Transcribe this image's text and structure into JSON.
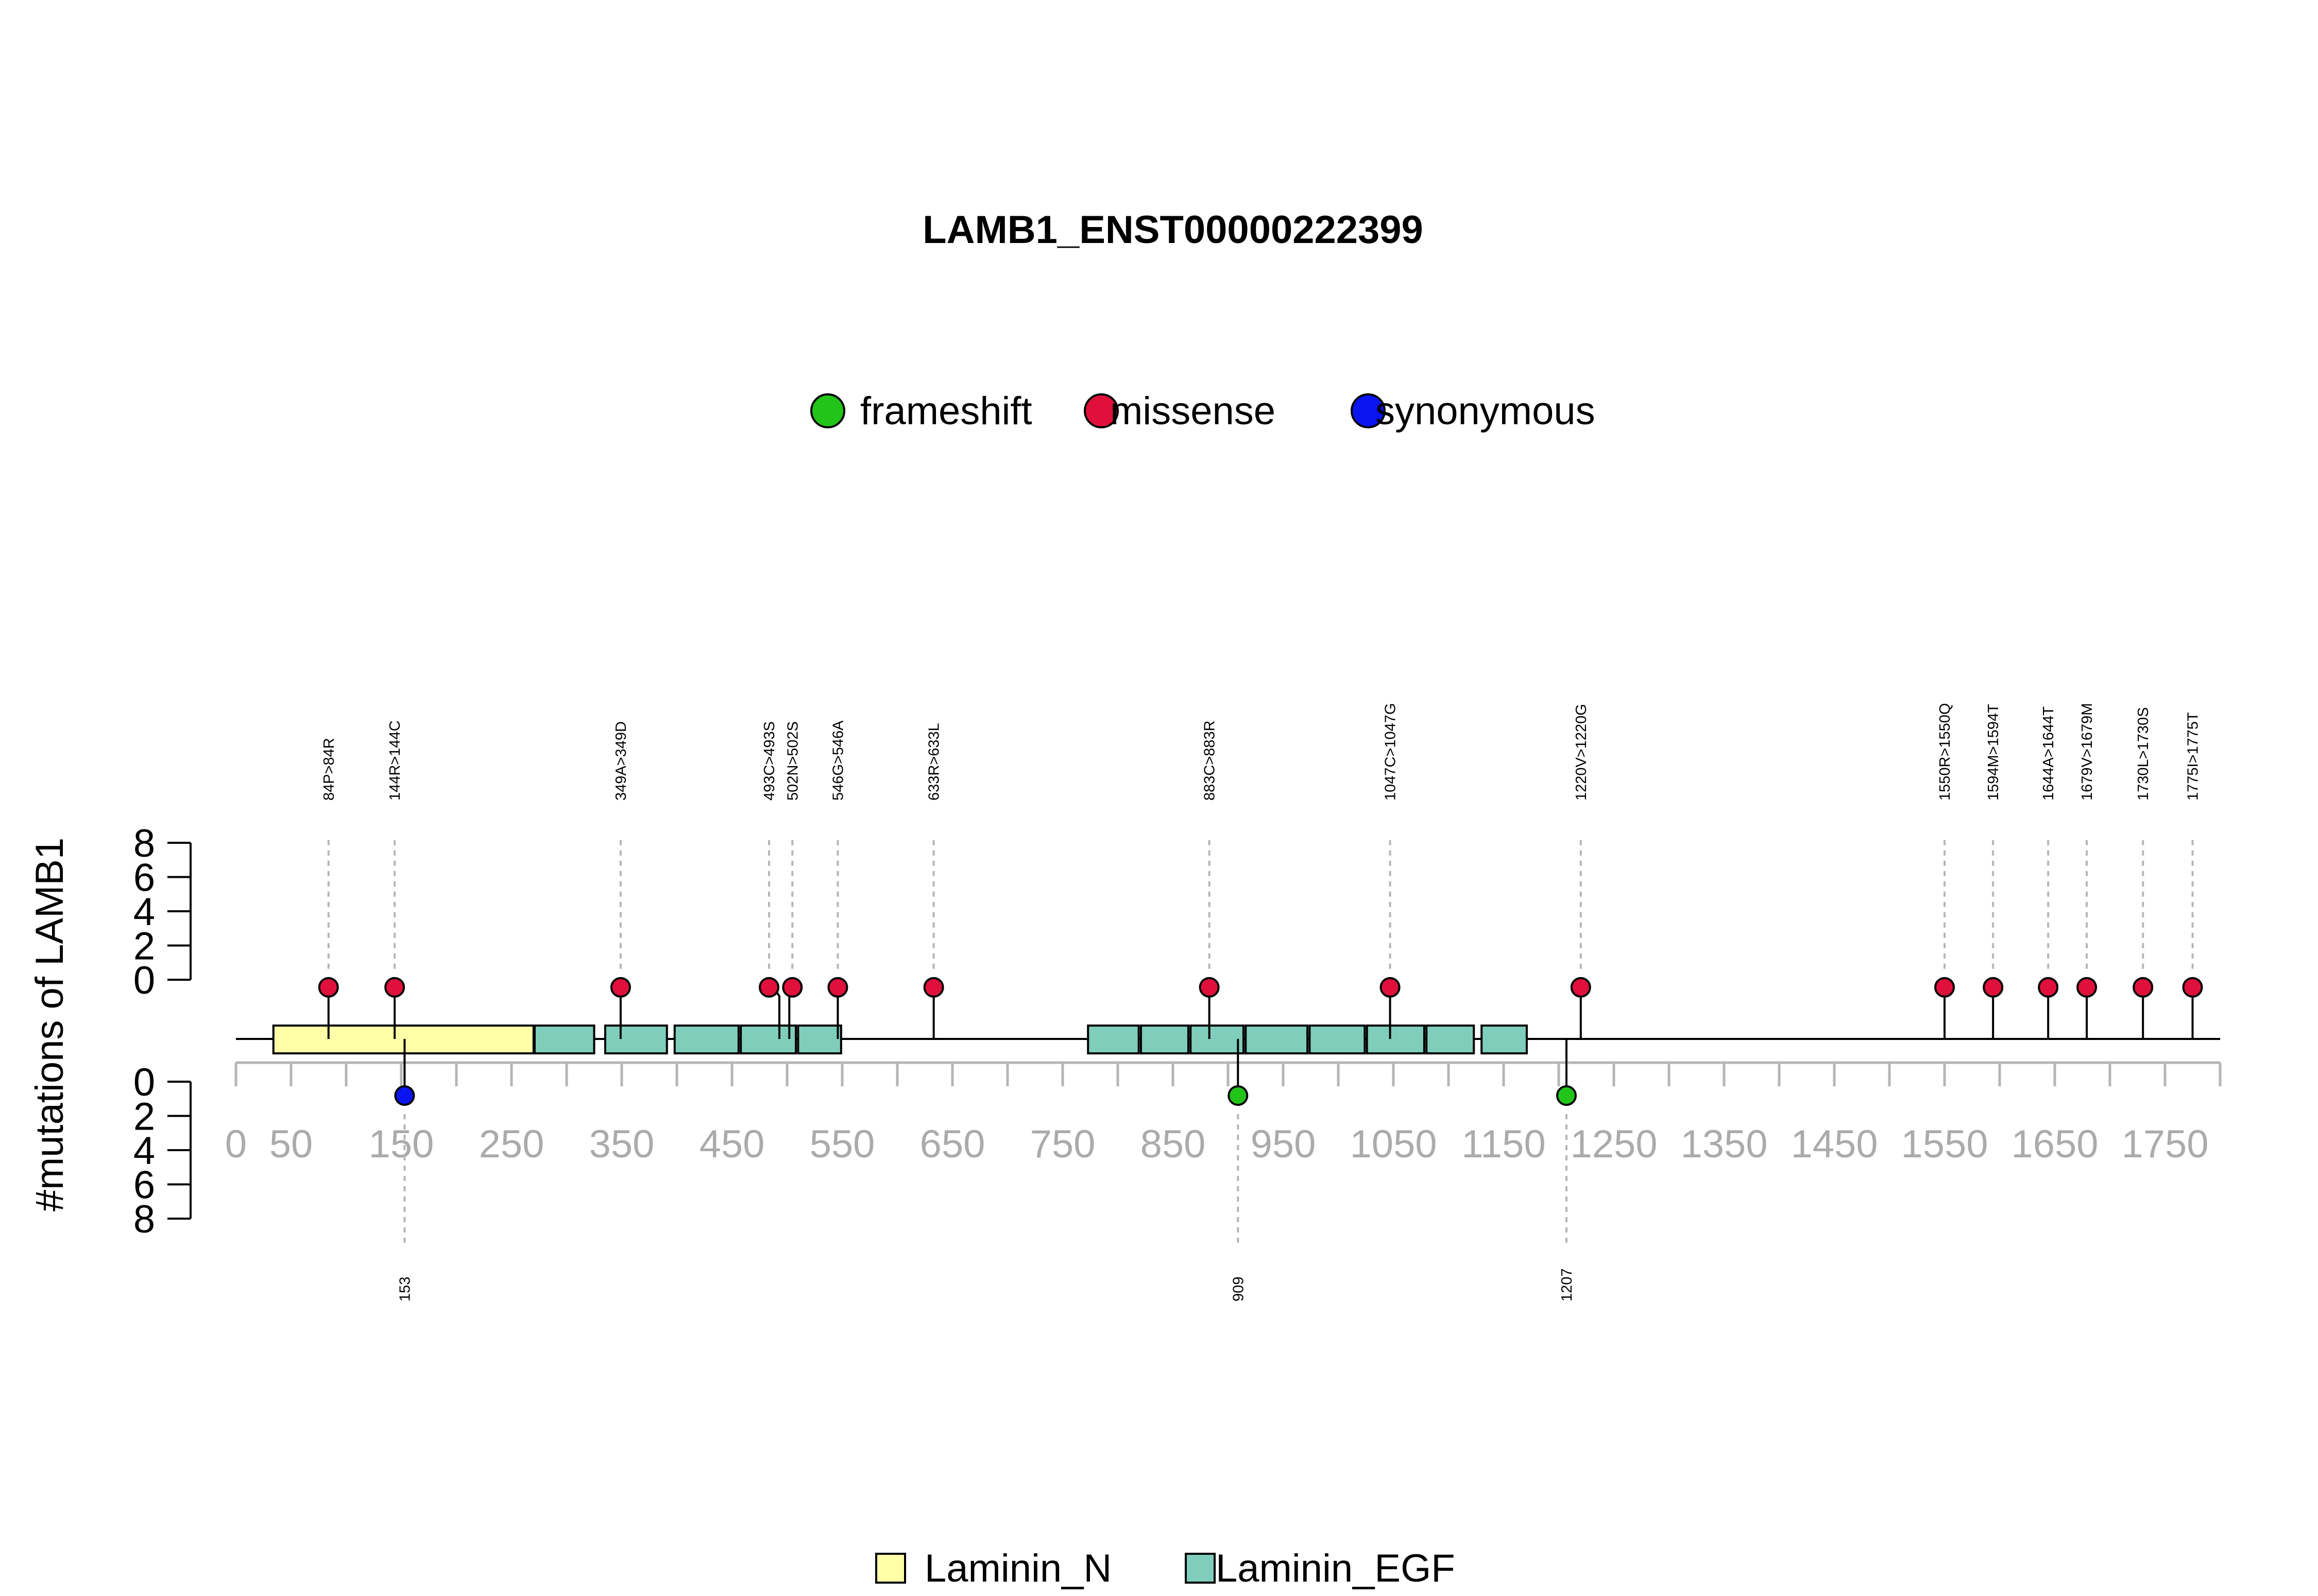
{
  "chart_data": {
    "type": "lollipop",
    "title": "LAMB1_ENST00000222399",
    "ylabel": "#mutations of LAMB1",
    "xlim": [
      0,
      1800
    ],
    "x_ticks": [
      0,
      50,
      150,
      250,
      350,
      450,
      550,
      650,
      750,
      850,
      950,
      1050,
      1150,
      1250,
      1350,
      1450,
      1550,
      1650,
      1750
    ],
    "y_ticks": [
      0,
      2,
      4,
      6,
      8
    ],
    "ylim": [
      0,
      8
    ],
    "grid": false,
    "legend_position": "top-center",
    "mutation_types": [
      {
        "name": "frameshift",
        "color": "#22C41A"
      },
      {
        "name": "missense",
        "color": "#E0103C"
      },
      {
        "name": "synonymous",
        "color": "#0A14F0"
      }
    ],
    "upper_mutations": [
      {
        "pos": 84,
        "label": "84P>84R",
        "count": 1,
        "type": "missense"
      },
      {
        "pos": 144,
        "label": "144R>144C",
        "count": 1,
        "type": "missense"
      },
      {
        "pos": 349,
        "label": "349A>349D",
        "count": 1,
        "type": "missense"
      },
      {
        "pos": 493,
        "label": "493C>493S",
        "count": 1,
        "type": "missense"
      },
      {
        "pos": 502,
        "label": "502N>502S",
        "count": 1,
        "type": "missense"
      },
      {
        "pos": 546,
        "label": "546G>546A",
        "count": 1,
        "type": "missense"
      },
      {
        "pos": 633,
        "label": "633R>633L",
        "count": 1,
        "type": "missense"
      },
      {
        "pos": 883,
        "label": "883C>883R",
        "count": 1,
        "type": "missense"
      },
      {
        "pos": 1047,
        "label": "1047C>1047G",
        "count": 1,
        "type": "missense"
      },
      {
        "pos": 1220,
        "label": "1220V>1220G",
        "count": 1,
        "type": "missense"
      },
      {
        "pos": 1550,
        "label": "1550R>1550Q",
        "count": 1,
        "type": "missense"
      },
      {
        "pos": 1594,
        "label": "1594M>1594T",
        "count": 1,
        "type": "missense"
      },
      {
        "pos": 1644,
        "label": "1644A>1644T",
        "count": 1,
        "type": "missense"
      },
      {
        "pos": 1679,
        "label": "1679V>1679M",
        "count": 1,
        "type": "missense"
      },
      {
        "pos": 1730,
        "label": "1730L>1730S",
        "count": 1,
        "type": "missense"
      },
      {
        "pos": 1775,
        "label": "1775I>1775T",
        "count": 1,
        "type": "missense"
      }
    ],
    "lower_mutations": [
      {
        "pos": 153,
        "label": "153",
        "count": 1,
        "type": "synonymous"
      },
      {
        "pos": 909,
        "label": "909",
        "count": 1,
        "type": "frameshift"
      },
      {
        "pos": 1207,
        "label": "1207",
        "count": 1,
        "type": "frameshift"
      }
    ],
    "domain_types": [
      {
        "name": "Laminin_N",
        "color": "#FFFFA8"
      },
      {
        "name": "Laminin_EGF",
        "color": "#7FCDBB"
      }
    ],
    "domains": [
      {
        "name": "Laminin_N",
        "start": 34,
        "end": 270
      },
      {
        "name": "Laminin_EGF",
        "start": 271,
        "end": 325
      },
      {
        "name": "Laminin_EGF",
        "start": 335,
        "end": 391
      },
      {
        "name": "Laminin_EGF",
        "start": 398,
        "end": 456
      },
      {
        "name": "Laminin_EGF",
        "start": 458,
        "end": 508
      },
      {
        "name": "Laminin_EGF",
        "start": 510,
        "end": 549
      },
      {
        "name": "Laminin_EGF",
        "start": 773,
        "end": 819
      },
      {
        "name": "Laminin_EGF",
        "start": 821,
        "end": 864
      },
      {
        "name": "Laminin_EGF",
        "start": 866,
        "end": 914
      },
      {
        "name": "Laminin_EGF",
        "start": 916,
        "end": 972
      },
      {
        "name": "Laminin_EGF",
        "start": 974,
        "end": 1024
      },
      {
        "name": "Laminin_EGF",
        "start": 1026,
        "end": 1078
      },
      {
        "name": "Laminin_EGF",
        "start": 1080,
        "end": 1123
      },
      {
        "name": "Laminin_EGF",
        "start": 1130,
        "end": 1171
      }
    ]
  }
}
